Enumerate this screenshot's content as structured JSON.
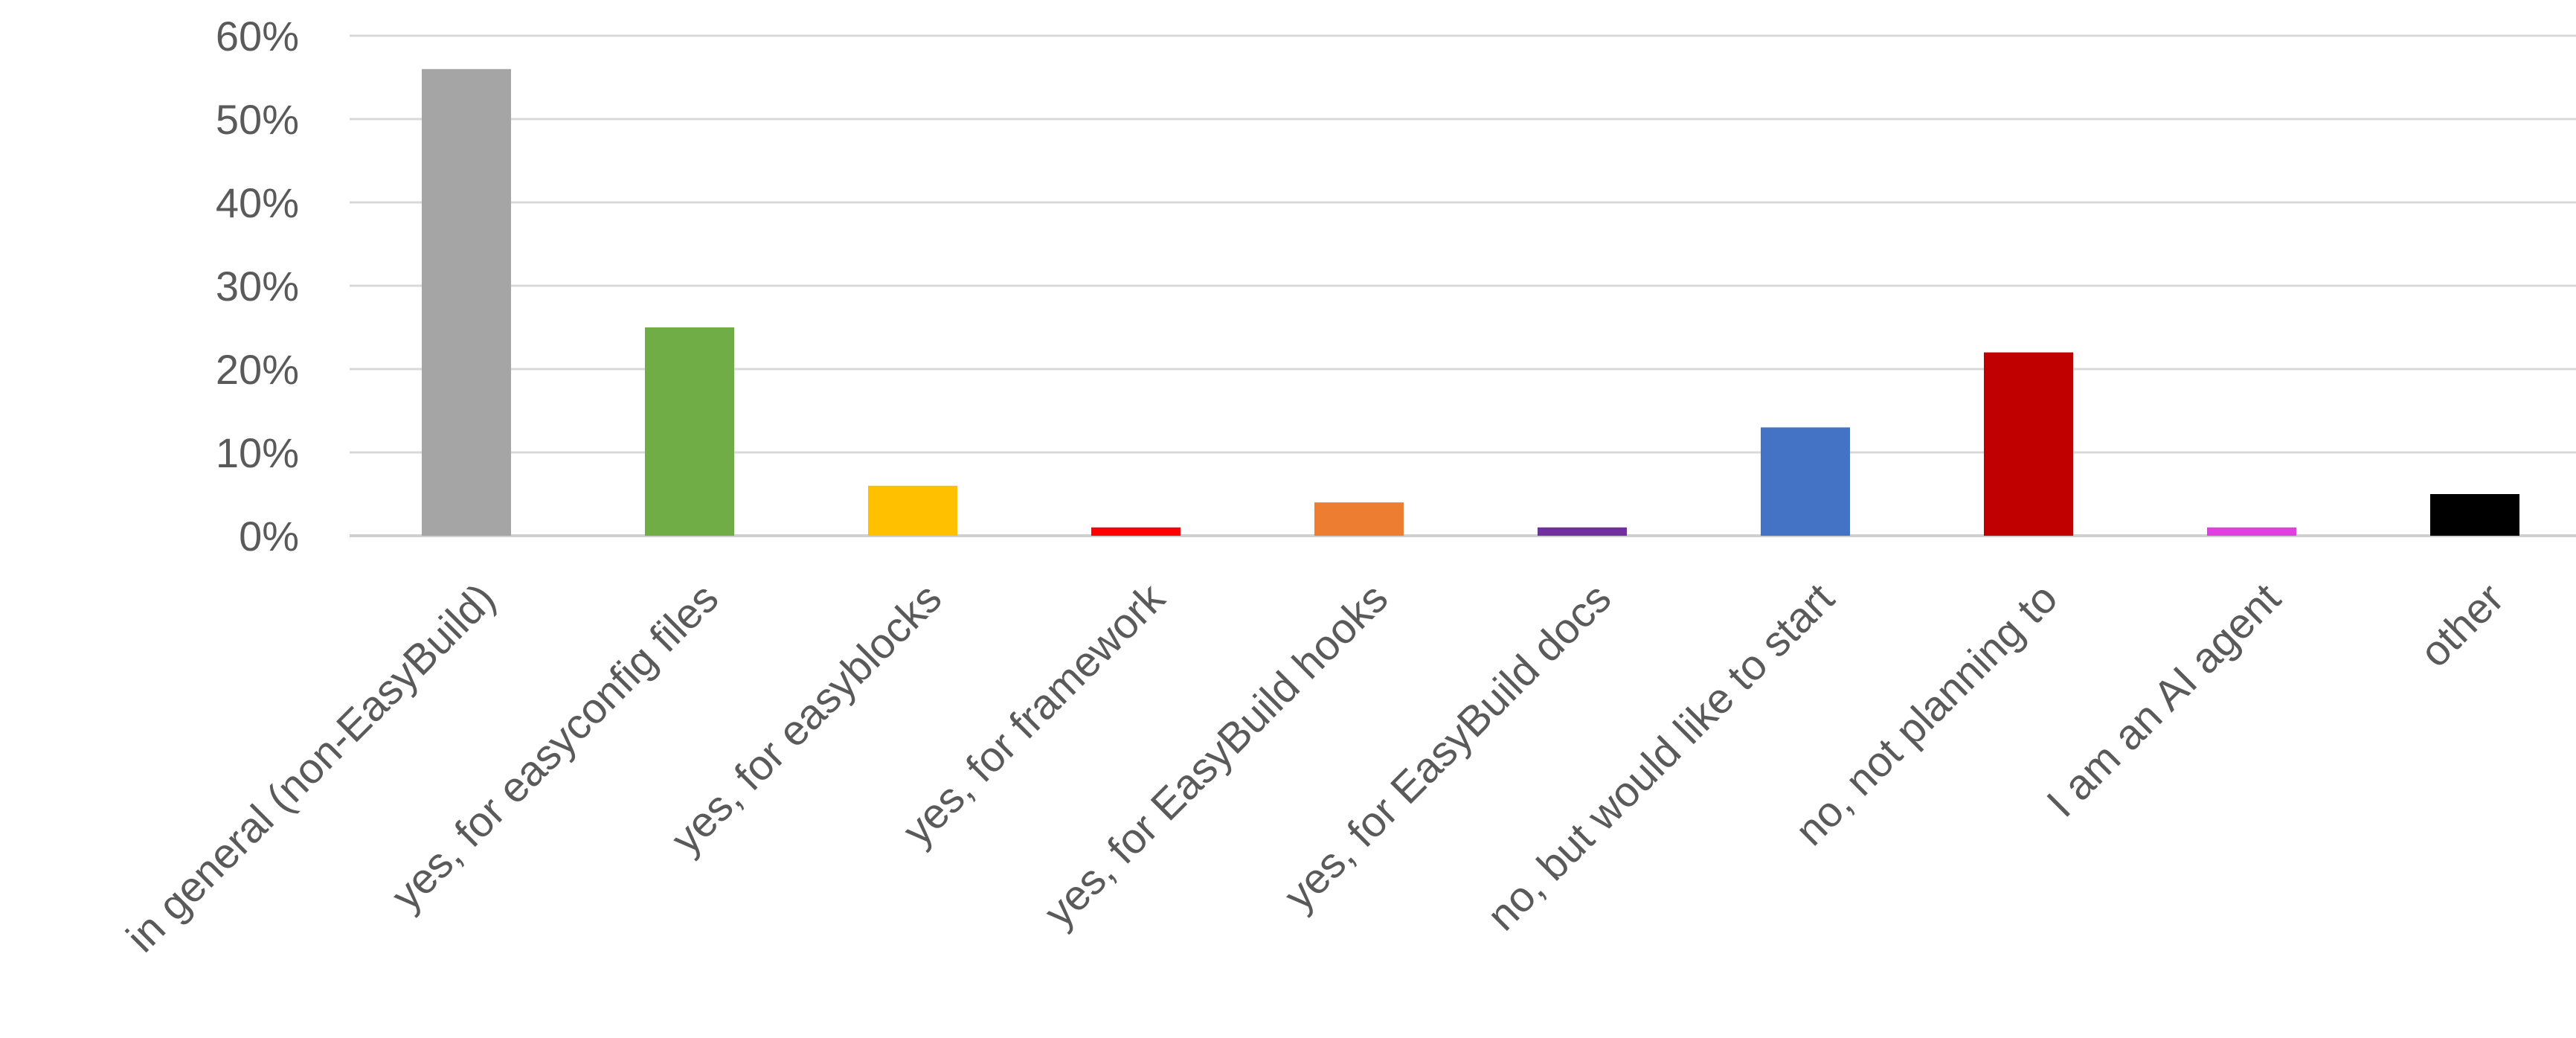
{
  "chart_data": {
    "type": "bar",
    "title": "",
    "xlabel": "",
    "ylabel": "",
    "ylim": [
      0,
      60
    ],
    "y_ticks": [
      "0%",
      "10%",
      "20%",
      "30%",
      "40%",
      "50%",
      "60%"
    ],
    "y_tick_values": [
      0,
      10,
      20,
      30,
      40,
      50,
      60
    ],
    "grid": true,
    "legend": "none",
    "categories": [
      "in general (non-EasyBuild)",
      "yes, for easyconfig files",
      "yes, for easyblocks",
      "yes, for framework",
      "yes, for EasyBuild hooks",
      "yes, for EasyBuild docs",
      "no, but would like to start",
      "no, not planning to",
      "I am an AI agent",
      "other"
    ],
    "values": [
      56,
      25,
      6,
      1,
      4,
      1,
      13,
      22,
      1,
      5
    ],
    "bar_colors": [
      "#a5a5a5",
      "#70ad47",
      "#ffc000",
      "#ff0000",
      "#ed7d31",
      "#7030a0",
      "#4472c4",
      "#c00000",
      "#e040e0",
      "#000000"
    ]
  }
}
